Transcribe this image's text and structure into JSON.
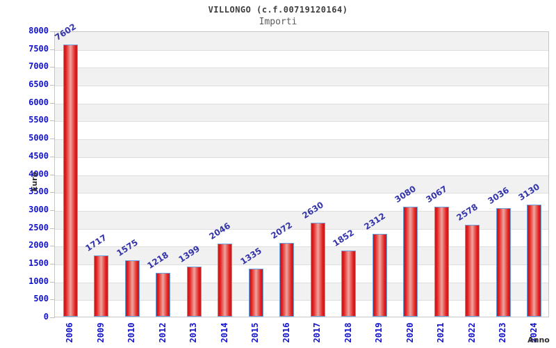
{
  "header": {
    "title": "VILLONGO (c.f.00719120164)",
    "subtitle": "Importi"
  },
  "chart_data": {
    "type": "bar",
    "title": "VILLONGO (c.f.00719120164)",
    "subtitle": "Importi",
    "xlabel": "Anno",
    "ylabel": "Euro",
    "categories": [
      "2006",
      "2009",
      "2010",
      "2012",
      "2013",
      "2014",
      "2015",
      "2016",
      "2017",
      "2018",
      "2019",
      "2020",
      "2021",
      "2022",
      "2023",
      "2024"
    ],
    "values": [
      7602,
      1717,
      1575,
      1218,
      1399,
      2046,
      1335,
      2072,
      2630,
      1852,
      2312,
      3080,
      3067,
      2578,
      3036,
      3130
    ],
    "ylim": [
      0,
      8000
    ],
    "ytick_step": 500,
    "grid": "horizontal bands alternating every 500",
    "legend_position": "none",
    "colors": {
      "bar_edge": "#b92020",
      "bar_bright": "#e31b1b",
      "bar_center": "#eda59e",
      "bar_border": "#6aa2e0",
      "axis_tick_label": "#1212cc",
      "value_label": "#3434aa",
      "band_fill": "#f1f1f1",
      "gridline": "#dedede",
      "plot_border": "#c6c6c6"
    }
  }
}
